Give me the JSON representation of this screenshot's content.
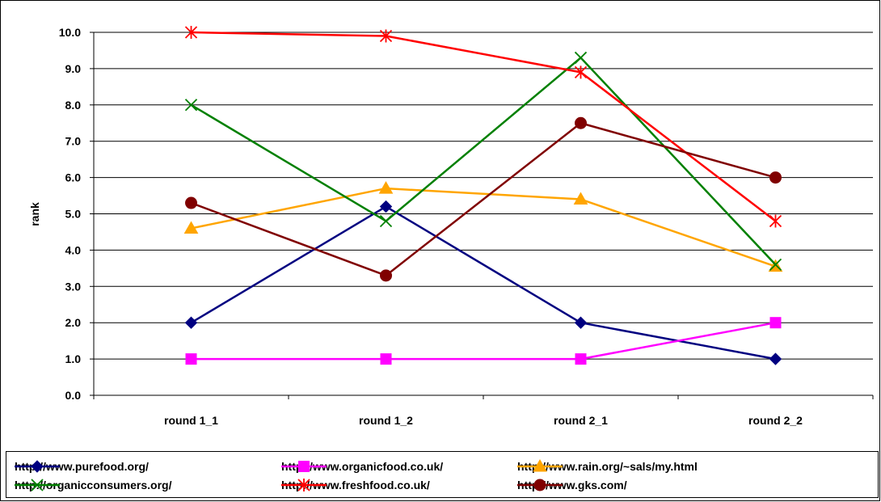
{
  "chart_data": {
    "type": "line",
    "title": "",
    "xlabel": "",
    "ylabel": "rank",
    "ylim": [
      0,
      10
    ],
    "ytick_step": 1,
    "ytick_labels": [
      "0.0",
      "1.0",
      "2.0",
      "3.0",
      "4.0",
      "5.0",
      "6.0",
      "7.0",
      "8.0",
      "9.0",
      "10.0"
    ],
    "categories": [
      "round 1_1",
      "round 1_2",
      "round 2_1",
      "round 2_2"
    ],
    "grid": true,
    "legend_position": "bottom",
    "series": [
      {
        "name": "http://www.purefood.org/",
        "color": "#000080",
        "marker": "diamond",
        "values": [
          2.0,
          5.2,
          2.0,
          1.0
        ]
      },
      {
        "name": "http://www.organicfood.co.uk/",
        "color": "#ff00ff",
        "marker": "square",
        "values": [
          1.0,
          1.0,
          1.0,
          2.0
        ]
      },
      {
        "name": "http://www.rain.org/~sals/my.html",
        "color": "#ffa500",
        "marker": "triangle",
        "values": [
          4.6,
          5.7,
          5.4,
          3.55
        ]
      },
      {
        "name": "http://organicconsumers.org/",
        "color": "#008000",
        "marker": "x",
        "values": [
          8.0,
          4.8,
          9.3,
          3.6
        ]
      },
      {
        "name": "http://www.freshfood.co.uk/",
        "color": "#ff0000",
        "marker": "star",
        "values": [
          10.0,
          9.9,
          8.9,
          4.8
        ]
      },
      {
        "name": "http://www.gks.com/",
        "color": "#800000",
        "marker": "circle",
        "values": [
          5.3,
          3.3,
          7.5,
          6.0
        ]
      }
    ]
  }
}
